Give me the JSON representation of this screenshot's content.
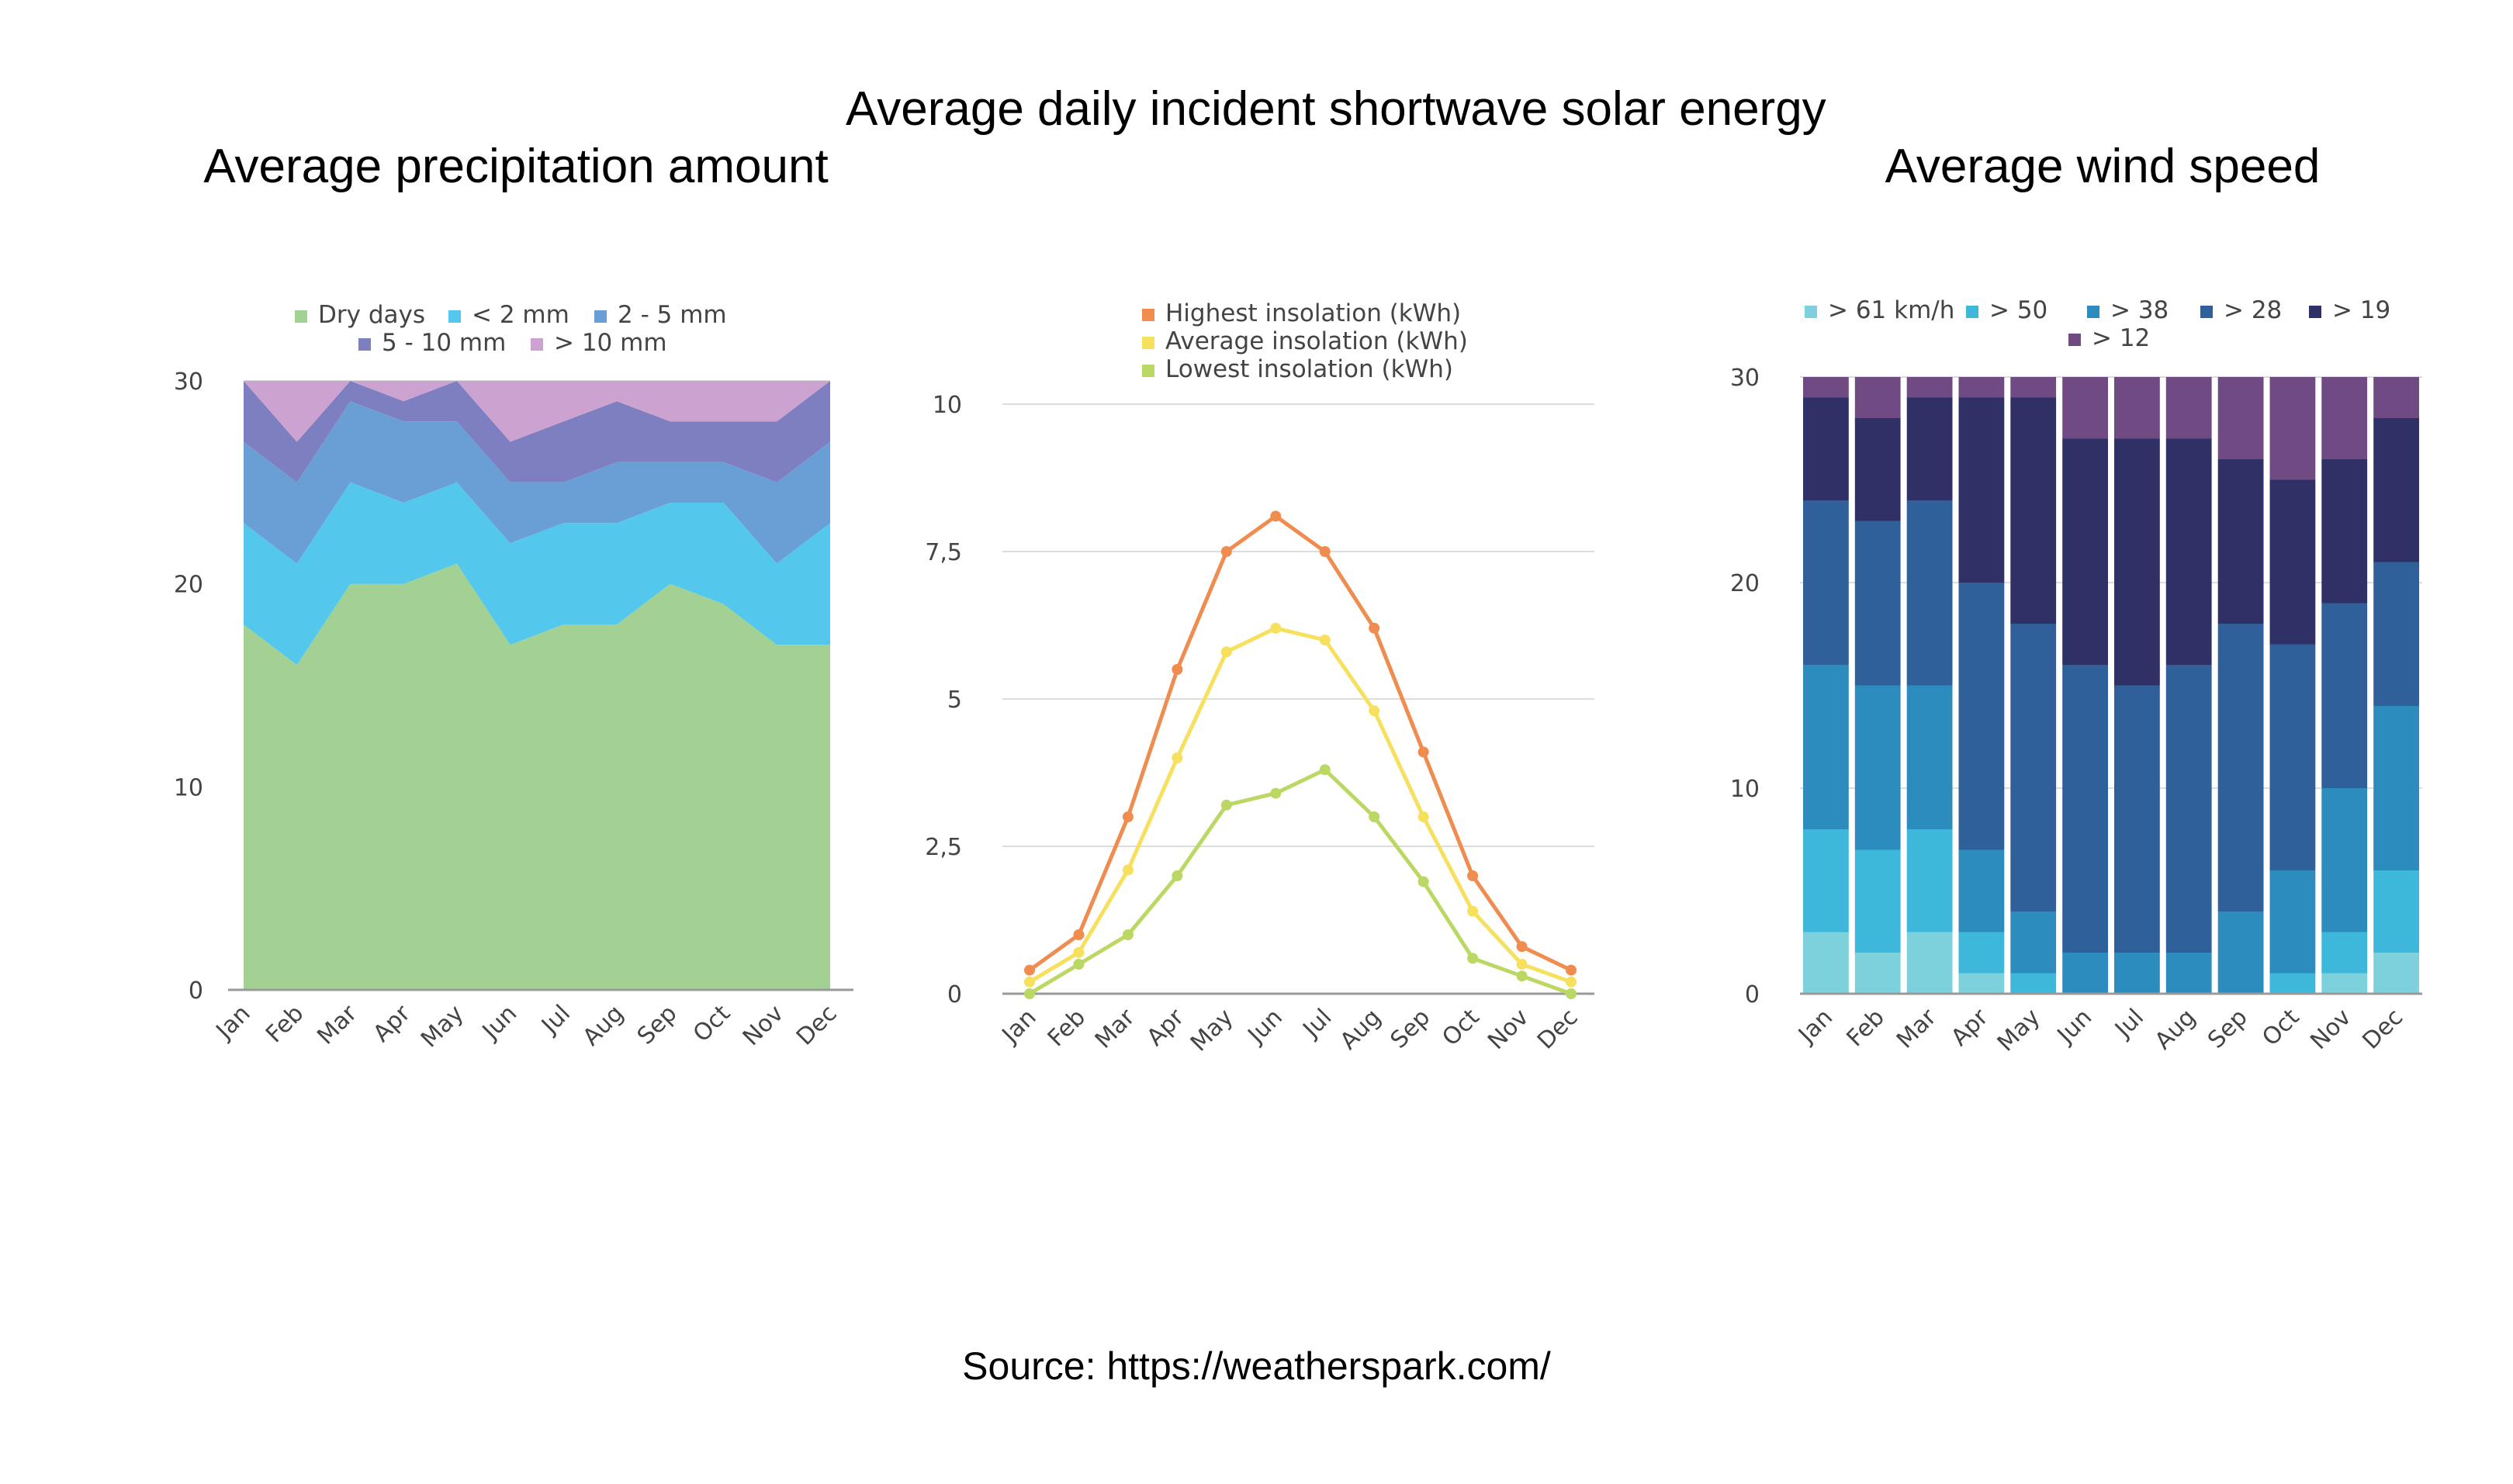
{
  "source": "Source: https://weatherspark.com/",
  "chart_data": [
    {
      "type": "area",
      "stacked": true,
      "title": "Average precipitation amount",
      "categories": [
        "Jan",
        "Feb",
        "Mar",
        "Apr",
        "May",
        "Jun",
        "Jul",
        "Aug",
        "Sep",
        "Oct",
        "Nov",
        "Dec"
      ],
      "ylim": [
        0,
        30
      ],
      "yticks": [
        "0",
        "10",
        "20",
        "30"
      ],
      "legend": "top",
      "series": [
        {
          "name": "Dry days",
          "color": "#a3d193",
          "values": [
            18,
            16,
            20,
            20,
            21,
            17,
            18,
            18,
            20,
            19,
            17,
            17
          ]
        },
        {
          "name": "< 2 mm",
          "color": "#54c8ec",
          "values": [
            5,
            5,
            5,
            4,
            4,
            5,
            5,
            5,
            4,
            5,
            4,
            6
          ]
        },
        {
          "name": "2 - 5 mm",
          "color": "#6a9fd6",
          "values": [
            4,
            4,
            4,
            4,
            3,
            3,
            2,
            3,
            2,
            2,
            4,
            4
          ]
        },
        {
          "name": "5 - 10 mm",
          "color": "#7d7fc0",
          "values": [
            3,
            2,
            1,
            1,
            2,
            2,
            3,
            3,
            2,
            2,
            3,
            3
          ]
        },
        {
          "name": "> 10 mm",
          "color": "#cca3d0",
          "values": [
            0,
            3,
            0,
            1,
            0,
            3,
            2,
            1,
            2,
            2,
            2,
            0
          ]
        }
      ]
    },
    {
      "type": "line",
      "title": "Average daily incident shortwave solar energy",
      "categories": [
        "Jan",
        "Feb",
        "Mar",
        "Apr",
        "May",
        "Jun",
        "Jul",
        "Aug",
        "Sep",
        "Oct",
        "Nov",
        "Dec"
      ],
      "ylim": [
        0,
        10
      ],
      "yticks": [
        "0",
        "2,5",
        "5",
        "7,5",
        "10"
      ],
      "legend": "top",
      "series": [
        {
          "name": "Highest insolation (kWh)",
          "color": "#f08c4f",
          "values": [
            0.4,
            1.0,
            3.0,
            5.5,
            7.5,
            8.1,
            7.5,
            6.2,
            4.1,
            2.0,
            0.8,
            0.4
          ]
        },
        {
          "name": "Average insolation (kWh)",
          "color": "#f6e05e",
          "values": [
            0.2,
            0.7,
            2.1,
            4.0,
            5.8,
            6.2,
            6.0,
            4.8,
            3.0,
            1.4,
            0.5,
            0.2
          ]
        },
        {
          "name": "Lowest insolation (kWh)",
          "color": "#bcd864",
          "values": [
            0.0,
            0.5,
            1.0,
            2.0,
            3.2,
            3.4,
            3.8,
            3.0,
            1.9,
            0.6,
            0.3,
            0.0
          ]
        }
      ]
    },
    {
      "type": "bar",
      "stacked": true,
      "title": "Average wind speed",
      "categories": [
        "Jan",
        "Feb",
        "Mar",
        "Apr",
        "May",
        "Jun",
        "Jul",
        "Aug",
        "Sep",
        "Oct",
        "Nov",
        "Dec"
      ],
      "ylim": [
        0,
        30
      ],
      "yticks": [
        "0",
        "10",
        "20",
        "30"
      ],
      "legend": "top",
      "series": [
        {
          "name": "> 61 km/h",
          "color": "#7dd1dc",
          "values": [
            3,
            2,
            3,
            1,
            0,
            0,
            0,
            0,
            0,
            0,
            1,
            2
          ]
        },
        {
          "name": "> 50",
          "color": "#3db7da",
          "values": [
            5,
            5,
            5,
            2,
            1,
            0,
            0,
            0,
            0,
            1,
            2,
            4
          ]
        },
        {
          "name": "> 38",
          "color": "#2d8cbe",
          "values": [
            8,
            8,
            7,
            4,
            3,
            2,
            2,
            2,
            4,
            5,
            7,
            8
          ]
        },
        {
          "name": "> 28",
          "color": "#2f6099",
          "values": [
            8,
            8,
            9,
            13,
            14,
            14,
            13,
            14,
            14,
            11,
            9,
            7
          ]
        },
        {
          "name": "> 19",
          "color": "#2e3066",
          "values": [
            5,
            5,
            5,
            9,
            11,
            11,
            12,
            11,
            8,
            8,
            7,
            7
          ]
        },
        {
          "name": "> 12",
          "color": "#6f4a83",
          "values": [
            1,
            2,
            1,
            1,
            1,
            3,
            3,
            3,
            4,
            5,
            4,
            2
          ]
        }
      ]
    }
  ]
}
